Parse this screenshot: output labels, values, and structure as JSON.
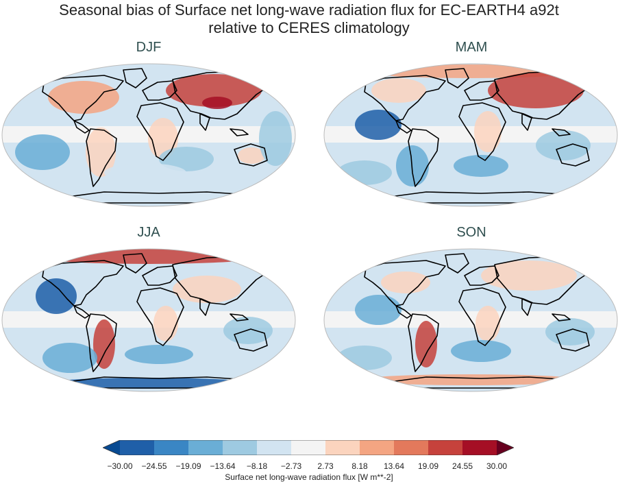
{
  "title": {
    "line1": "Seasonal bias of Surface net long-wave radiation flux for EC-EARTH4 a92t",
    "line2": "relative to CERES climatology"
  },
  "panels": [
    {
      "label": "DJF"
    },
    {
      "label": "MAM"
    },
    {
      "label": "JJA"
    },
    {
      "label": "SON"
    }
  ],
  "colorbar": {
    "label": "Surface net long-wave radiation flux [W m**-2]",
    "ticks": [
      "−30.00",
      "−24.55",
      "−19.09",
      "−13.64",
      "−8.18",
      "−2.73",
      "2.73",
      "8.18",
      "13.64",
      "19.09",
      "24.55",
      "30.00"
    ],
    "colors": [
      "#084a91",
      "#1f5fa8",
      "#3a86c4",
      "#6aaed6",
      "#9ecae1",
      "#d2e4f1",
      "#f4f4f4",
      "#fbd4be",
      "#f4a582",
      "#e3795c",
      "#c6423c",
      "#a50f25",
      "#67001f"
    ],
    "extend": "both"
  },
  "style": {
    "land_outline": "#000000",
    "map_border": "#bbbbbb"
  }
}
